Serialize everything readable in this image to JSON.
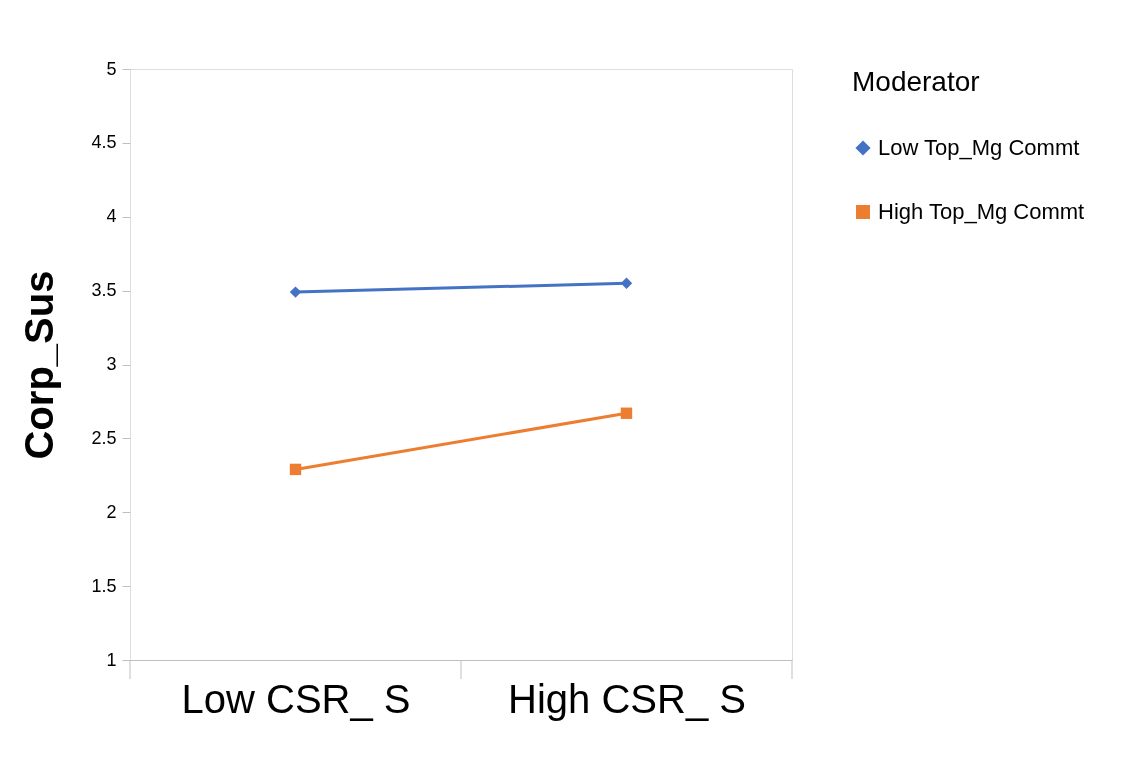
{
  "chart_data": {
    "type": "line",
    "ylabel": "Corp_Sus",
    "legend_title": "Moderator",
    "categories": [
      "Low CSR_ S",
      "High CSR_ S"
    ],
    "series": [
      {
        "name": "Low Top_Mg Commt",
        "color": "#4472c4",
        "marker": "diamond",
        "values": [
          3.49,
          3.55
        ]
      },
      {
        "name": "High Top_Mg Commt",
        "color": "#ed7d31",
        "marker": "square",
        "values": [
          2.29,
          2.67
        ]
      }
    ],
    "ylim": [
      1,
      5
    ],
    "yticks": [
      1,
      1.5,
      2,
      2.5,
      3,
      3.5,
      4,
      4.5,
      5
    ],
    "grid": false,
    "legend": "right",
    "line_style": "solid"
  }
}
